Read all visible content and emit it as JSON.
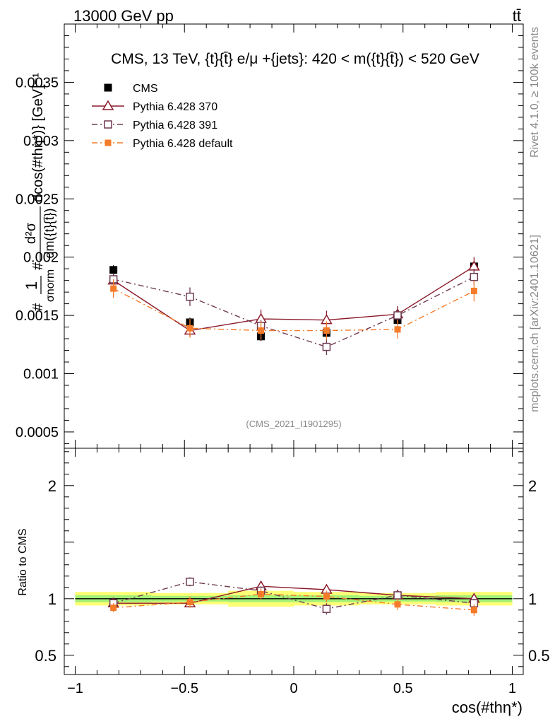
{
  "header": {
    "energy_label": "13000 GeV pp",
    "process_label": "tt̄"
  },
  "side_labels": {
    "rivet": "Rivet 4.1.0, ≥ 100k events",
    "source": "mcplots.cern.ch [arXiv:2401.10621]"
  },
  "chart_data": [
    {
      "type": "line",
      "panel": "main",
      "title": "CMS, 13 TeV, {t}{t̄} e/μ +{jets}: 420 < m({t}{t̄}) < 520 GeV",
      "analysis_tag": "(CMS_2021_I1901295)",
      "xlabel": "cos(#thη*)",
      "ylabel_parts": {
        "prefix": "#",
        "frac1_num": "1",
        "frac1_den": "σnorm",
        "mid": "#",
        "frac2_num": "d²σ",
        "frac2_den": "dm({t}{t̄})",
        "suffix": "dcos(#thη*)} [GeV]⁻¹"
      },
      "xlim": [
        -1.05,
        1.05
      ],
      "ylim": [
        0.00036,
        0.004
      ],
      "yticks": [
        0.0005,
        0.001,
        0.0015,
        0.002,
        0.0025,
        0.003,
        0.0035
      ],
      "ytick_labels": [
        "0.0005",
        "0.001",
        "0.0015",
        "0.002",
        "0.0025",
        "0.003",
        "0.0035"
      ],
      "x": [
        -0.825,
        -0.475,
        -0.15,
        0.15,
        0.475,
        0.825
      ],
      "series": [
        {
          "name": "CMS",
          "color": "#000000",
          "marker": "square-filled",
          "line": "none",
          "values": [
            0.00189,
            0.00144,
            0.00132,
            0.00135,
            0.00146,
            0.00192
          ],
          "errors": [
            4e-05,
            4e-05,
            4e-05,
            4e-05,
            4e-05,
            4e-05
          ]
        },
        {
          "name": "Pythia 6.428 370",
          "color": "#8b1a2b",
          "marker": "triangle-open",
          "line": "solid",
          "values": [
            0.0018,
            0.00137,
            0.00147,
            0.00146,
            0.00151,
            0.00192
          ],
          "errors": [
            5e-05,
            5e-05,
            8e-05,
            8e-05,
            7e-05,
            8e-05
          ]
        },
        {
          "name": "Pythia 6.428 391",
          "color": "#6e3a52",
          "marker": "square-open",
          "line": "dashdot",
          "values": [
            0.00181,
            0.00166,
            0.00141,
            0.00123,
            0.0015,
            0.00183
          ],
          "errors": [
            5e-05,
            8e-05,
            5e-05,
            7e-05,
            6e-05,
            7e-05
          ]
        },
        {
          "name": "Pythia 6.428 default",
          "color": "#f47b2a",
          "marker": "square-filled-small",
          "line": "dashdot",
          "values": [
            0.00173,
            0.00139,
            0.00137,
            0.00137,
            0.00138,
            0.00171
          ],
          "errors": [
            8e-05,
            8e-05,
            8e-05,
            8e-05,
            8e-05,
            9e-05
          ]
        }
      ]
    },
    {
      "type": "line",
      "panel": "ratio",
      "ylabel": "Ratio to CMS",
      "xlabel": "cos(#thη*)",
      "xlim": [
        -1.05,
        1.05
      ],
      "ylim": [
        0.33,
        2.33
      ],
      "yticks": [
        0.5,
        1,
        2
      ],
      "ytick_labels": [
        "0.5",
        "1",
        "2"
      ],
      "xticks": [
        -1,
        -0.5,
        0,
        0.5,
        1
      ],
      "xtick_labels": [
        "−1",
        "−0.5",
        "0",
        "0.5",
        "1"
      ],
      "x": [
        -0.825,
        -0.475,
        -0.15,
        0.15,
        0.475,
        0.825
      ],
      "band_stat": [
        0.03,
        0.025,
        0.03,
        0.03,
        0.025,
        0.03
      ],
      "band_syst": [
        0.06,
        0.05,
        0.07,
        0.06,
        0.05,
        0.06
      ],
      "series": [
        {
          "name": "Pythia 6.428 370",
          "color": "#8b1a2b",
          "marker": "triangle-open",
          "line": "solid",
          "values": [
            0.96,
            0.96,
            1.11,
            1.08,
            1.03,
            1.0
          ],
          "errors": [
            0.03,
            0.03,
            0.04,
            0.04,
            0.04,
            0.04
          ]
        },
        {
          "name": "Pythia 6.428 391",
          "color": "#6e3a52",
          "marker": "square-open",
          "line": "dashdot",
          "values": [
            0.96,
            1.15,
            1.07,
            0.91,
            1.03,
            0.96
          ],
          "errors": [
            0.03,
            0.04,
            0.04,
            0.05,
            0.04,
            0.04
          ]
        },
        {
          "name": "Pythia 6.428 default",
          "color": "#f47b2a",
          "marker": "square-filled-small",
          "line": "dashdot",
          "values": [
            0.92,
            0.97,
            1.04,
            1.02,
            0.95,
            0.9
          ],
          "errors": [
            0.04,
            0.05,
            0.05,
            0.05,
            0.05,
            0.05
          ]
        }
      ]
    }
  ]
}
